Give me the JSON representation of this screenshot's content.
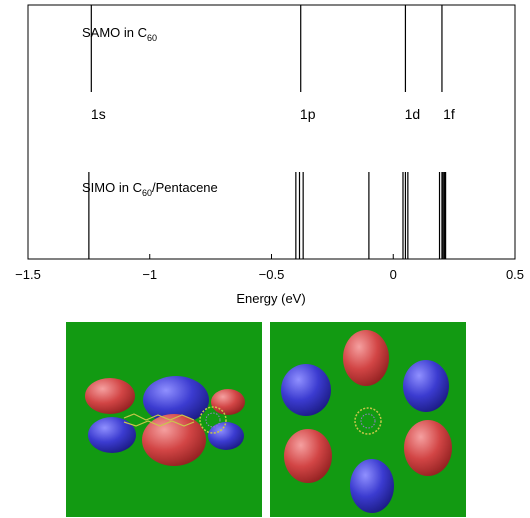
{
  "chart_data": {
    "type": "spectrum",
    "xlabel": "Energy (eV)",
    "xlim": [
      -1.5,
      0.5
    ],
    "xticks": [
      {
        "value": -1.5,
        "label": "−1.5"
      },
      {
        "value": -1.0,
        "label": "−1"
      },
      {
        "value": -0.5,
        "label": "−0.5"
      },
      {
        "value": 0.0,
        "label": "0"
      },
      {
        "value": 0.5,
        "label": "0.5"
      }
    ],
    "series": [
      {
        "name_main": "SAMO in C",
        "name_sub": "60",
        "name_suffix": "",
        "lines": [
          -1.24,
          -0.38,
          0.05,
          0.2
        ]
      },
      {
        "name_main": "SIMO in C",
        "name_sub": "60",
        "name_suffix": "/Pentacene",
        "lines": [
          -1.25,
          -0.4,
          -0.385,
          -0.37,
          -0.1,
          0.04,
          0.05,
          0.06,
          0.19,
          0.2,
          0.205,
          0.21,
          0.215
        ]
      }
    ],
    "annotations": [
      {
        "label": "1s",
        "x": -1.24
      },
      {
        "label": "1p",
        "x": -0.38
      },
      {
        "label": "1d",
        "x": 0.05
      },
      {
        "label": "1f",
        "x": 0.2
      }
    ]
  },
  "images": {
    "left_panel": "orbital-isosurface-c60-pentacene",
    "right_panel": "orbital-isosurface-c60",
    "background": "#129a12",
    "lobe_red": "#d24545",
    "lobe_blue": "#3b3bd0"
  }
}
